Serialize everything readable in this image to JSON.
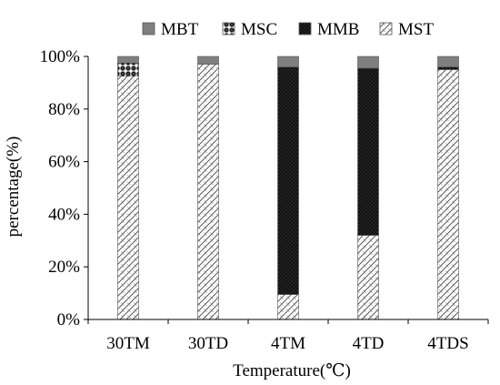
{
  "chart_data": {
    "type": "bar",
    "stacked": true,
    "categories": [
      "30TM",
      "30TD",
      "4TM",
      "4TD",
      "4TDS"
    ],
    "series": [
      {
        "name": "MST",
        "pattern": "diagonal-hatch",
        "color": "#ffffff",
        "values": [
          92.5,
          97,
          9.5,
          32,
          95
        ]
      },
      {
        "name": "MMB",
        "pattern": "dense-dots",
        "color": "#111111",
        "values": [
          0,
          0,
          86.5,
          63.5,
          1
        ]
      },
      {
        "name": "MSC",
        "pattern": "crosses",
        "color": "#ffffff",
        "values": [
          5,
          0,
          0,
          0,
          0
        ]
      },
      {
        "name": "MBT",
        "pattern": "solid",
        "color": "#7f7f7f",
        "values": [
          2.5,
          3,
          4,
          4.5,
          4
        ]
      }
    ],
    "legend_order": [
      "MBT",
      "MSC",
      "MMB",
      "MST"
    ],
    "legend_position": "top",
    "xlabel": "Temperature(℃)",
    "ylabel": "percentage(%)",
    "ylim": [
      0,
      100
    ],
    "yticks": [
      "0%",
      "20%",
      "40%",
      "60%",
      "80%",
      "100%"
    ],
    "grid": false
  }
}
